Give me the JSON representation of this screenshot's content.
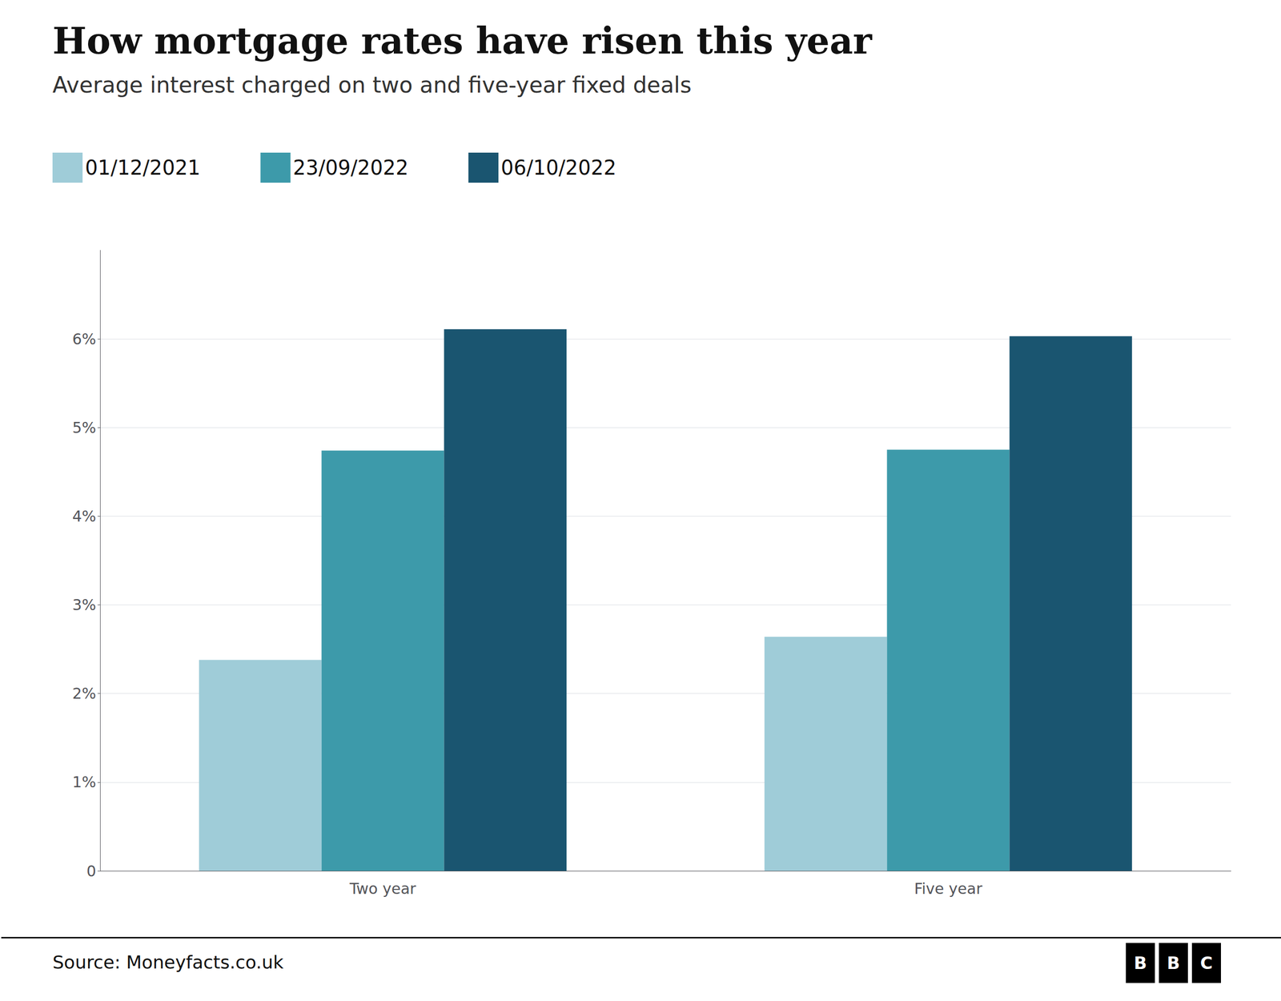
{
  "chart_data": {
    "type": "bar",
    "title": "How mortgage rates have risen this year",
    "subtitle": "Average interest charged on two and five-year fixed deals",
    "categories": [
      "Two year",
      "Five year"
    ],
    "series": [
      {
        "name": "01/12/2021",
        "color": "#9fccd8",
        "values": [
          2.38,
          2.64
        ]
      },
      {
        "name": "23/09/2022",
        "color": "#3d9aaa",
        "values": [
          4.74,
          4.75
        ]
      },
      {
        "name": "06/10/2022",
        "color": "#1a5570",
        "values": [
          6.11,
          6.03
        ]
      }
    ],
    "ylim": [
      0,
      7
    ],
    "yticks": [
      0,
      {
        "value": 1,
        "label": "1%"
      },
      {
        "value": 2,
        "label": "2%"
      },
      {
        "value": 3,
        "label": "3%"
      },
      {
        "value": 4,
        "label": "4%"
      },
      {
        "value": 5,
        "label": "5%"
      },
      {
        "value": 6,
        "label": "6%"
      }
    ],
    "grid": true,
    "legend": "upper left",
    "source": "Source: Moneyfacts.co.uk",
    "logo": "BBC"
  }
}
